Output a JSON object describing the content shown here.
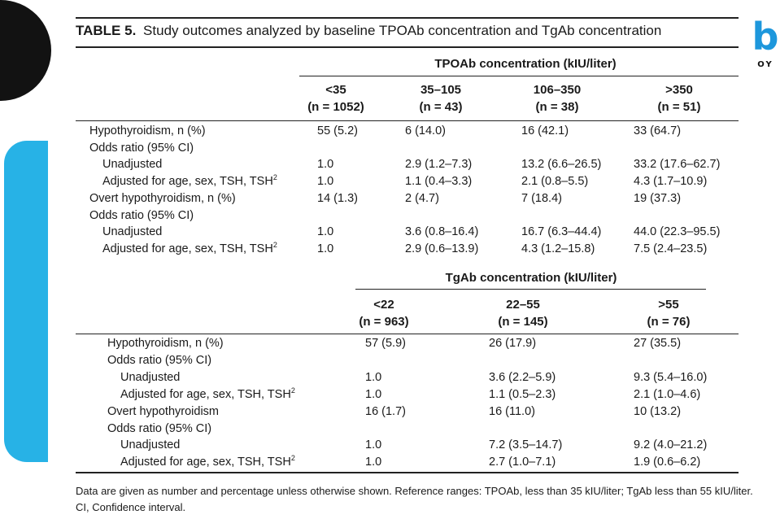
{
  "logo": {
    "letter": "b",
    "sub": "OY"
  },
  "table": {
    "label": "TABLE 5.",
    "caption": "Study outcomes analyzed by baseline TPOAb concentration and TgAb concentration"
  },
  "tpo": {
    "header": "TPOAb concentration (kIU/liter)",
    "columns": [
      {
        "range": "<35",
        "n": "(n = 1052)"
      },
      {
        "range": "35–105",
        "n": "(n = 43)"
      },
      {
        "range": "106–350",
        "n": "(n = 38)"
      },
      {
        "range": ">350",
        "n": "(n = 51)"
      }
    ],
    "rows": [
      {
        "label": "Hypothyroidism, n (%)",
        "values": [
          "55 (5.2)",
          "6 (14.0)",
          "16 (42.1)",
          "33 (64.7)"
        ]
      },
      {
        "label": "Odds ratio (95% CI)",
        "values": []
      },
      {
        "label": "Unadjusted",
        "values": [
          "1.0",
          "2.9 (1.2–7.3)",
          "13.2 (6.6–26.5)",
          "33.2 (17.6–62.7)"
        ]
      },
      {
        "label": "Adjusted for age, sex, TSH, TSH",
        "sup": "2",
        "values": [
          "1.0",
          "1.1 (0.4–3.3)",
          "2.1 (0.8–5.5)",
          "4.3 (1.7–10.9)"
        ]
      },
      {
        "label": "Overt hypothyroidism, n (%)",
        "values": [
          "14 (1.3)",
          "2 (4.7)",
          "7 (18.4)",
          "19 (37.3)"
        ]
      },
      {
        "label": "Odds ratio (95% CI)",
        "values": []
      },
      {
        "label": "Unadjusted",
        "values": [
          "1.0",
          "3.6 (0.8–16.4)",
          "16.7 (6.3–44.4)",
          "44.0 (22.3–95.5)"
        ]
      },
      {
        "label": "Adjusted for age, sex, TSH, TSH",
        "sup": "2",
        "values": [
          "1.0",
          "2.9 (0.6–13.9)",
          "4.3 (1.2–15.8)",
          "7.5 (2.4–23.5)"
        ]
      }
    ]
  },
  "tg": {
    "header": "TgAb concentration (kIU/liter)",
    "columns": [
      {
        "range": "<22",
        "n": "(n = 963)"
      },
      {
        "range": "22–55",
        "n": "(n = 145)"
      },
      {
        "range": ">55",
        "n": "(n = 76)"
      }
    ],
    "rows": [
      {
        "label": "Hypothyroidism, n (%)",
        "values": [
          "57 (5.9)",
          "26 (17.9)",
          "27 (35.5)"
        ]
      },
      {
        "label": "Odds ratio (95% CI)",
        "values": []
      },
      {
        "label": "Unadjusted",
        "values": [
          "1.0",
          "3.6 (2.2–5.9)",
          "9.3 (5.4–16.0)"
        ]
      },
      {
        "label": "Adjusted for age, sex, TSH, TSH",
        "sup": "2",
        "values": [
          "1.0",
          "1.1 (0.5–2.3)",
          "2.1 (1.0–4.6)"
        ]
      },
      {
        "label": "Overt hypothyroidism",
        "values": [
          "16 (1.7)",
          "16 (11.0)",
          "10 (13.2)"
        ]
      },
      {
        "label": "Odds ratio (95% CI)",
        "values": []
      },
      {
        "label": "Unadjusted",
        "values": [
          "1.0",
          "7.2 (3.5–14.7)",
          "9.2 (4.0–21.2)"
        ]
      },
      {
        "label": "Adjusted for age, sex, TSH, TSH",
        "sup": "2",
        "values": [
          "1.0",
          "2.7 (1.0–7.1)",
          "1.9 (0.6–6.2)"
        ]
      }
    ]
  },
  "footnote": "Data are given as number and percentage unless otherwise shown. Reference ranges: TPOAb, less than 35 kIU/liter; TgAb less than 55 kIU/liter. CI, Confidence interval."
}
